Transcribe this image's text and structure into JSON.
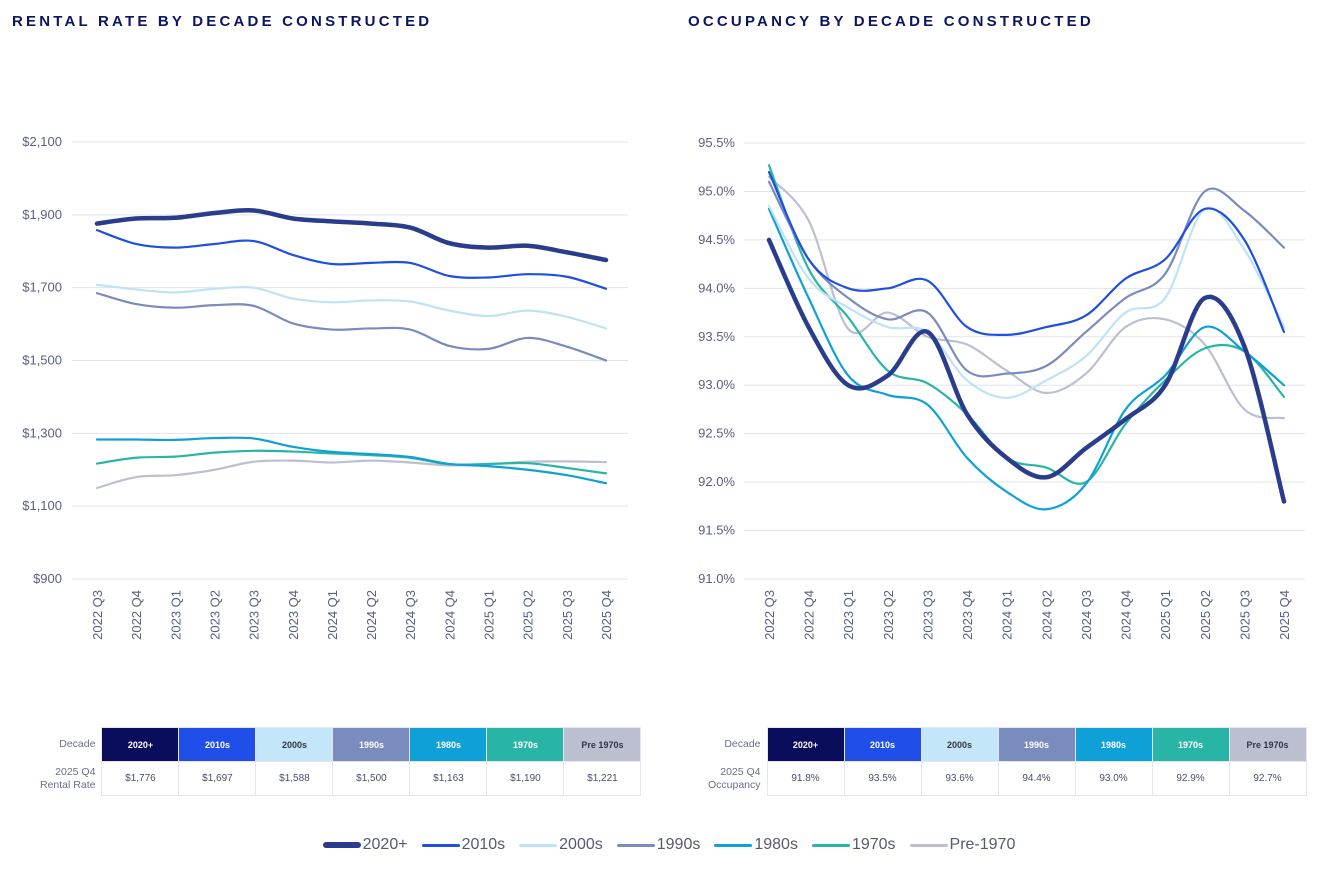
{
  "chart_data": [
    {
      "type": "line",
      "title": "RENTAL RATE BY DECADE CONSTRUCTED",
      "categories": [
        "2022 Q3",
        "2022 Q4",
        "2023 Q1",
        "2023 Q2",
        "2023 Q3",
        "2023 Q4",
        "2024 Q1",
        "2024 Q2",
        "2024 Q3",
        "2024 Q4",
        "2025 Q1",
        "2025 Q2",
        "2025 Q3",
        "2025 Q4"
      ],
      "ylim": [
        900,
        2100
      ],
      "yticks": [
        900,
        1100,
        1300,
        1500,
        1700,
        1900,
        2100
      ],
      "ytick_labels": [
        "$900",
        "$1,100",
        "$1,300",
        "$1,500",
        "$1,700",
        "$1,900",
        "$2,100"
      ],
      "grid": true,
      "series": [
        {
          "name": "2020+",
          "values": [
            1876,
            1890,
            1892,
            1905,
            1912,
            1890,
            1882,
            1876,
            1865,
            1822,
            1810,
            1815,
            1797,
            1776
          ]
        },
        {
          "name": "2010s",
          "values": [
            1858,
            1820,
            1810,
            1820,
            1828,
            1790,
            1765,
            1768,
            1768,
            1732,
            1728,
            1737,
            1730,
            1697
          ]
        },
        {
          "name": "2000s",
          "values": [
            1708,
            1695,
            1687,
            1697,
            1700,
            1670,
            1660,
            1665,
            1662,
            1637,
            1622,
            1637,
            1620,
            1588
          ]
        },
        {
          "name": "1990s",
          "values": [
            1685,
            1655,
            1645,
            1652,
            1650,
            1602,
            1585,
            1588,
            1585,
            1540,
            1532,
            1562,
            1538,
            1500
          ]
        },
        {
          "name": "1980s",
          "values": [
            1283,
            1283,
            1282,
            1287,
            1286,
            1263,
            1249,
            1243,
            1235,
            1216,
            1210,
            1200,
            1185,
            1163
          ]
        },
        {
          "name": "1970s",
          "values": [
            1217,
            1233,
            1236,
            1247,
            1252,
            1250,
            1245,
            1240,
            1233,
            1215,
            1216,
            1218,
            1205,
            1190
          ]
        },
        {
          "name": "Pre-1970",
          "values": [
            1150,
            1180,
            1185,
            1200,
            1222,
            1225,
            1220,
            1225,
            1220,
            1212,
            1215,
            1222,
            1223,
            1221
          ]
        }
      ]
    },
    {
      "type": "line",
      "title": "OCCUPANCY BY DECADE CONSTRUCTED",
      "categories": [
        "2022 Q3",
        "2022 Q4",
        "2023 Q1",
        "2023 Q2",
        "2023 Q3",
        "2023 Q4",
        "2024 Q1",
        "2024 Q2",
        "2024 Q3",
        "2024 Q4",
        "2025 Q1",
        "2025 Q2",
        "2025 Q3",
        "2025 Q4"
      ],
      "ylim": [
        91.0,
        95.5
      ],
      "yticks": [
        91.0,
        91.5,
        92.0,
        92.5,
        93.0,
        93.5,
        94.0,
        94.5,
        95.0,
        95.5
      ],
      "ytick_labels": [
        "91.0%",
        "91.5%",
        "92.0%",
        "92.5%",
        "93.0%",
        "93.5%",
        "94.0%",
        "94.5%",
        "95.0%",
        "95.5%"
      ],
      "grid": true,
      "series": [
        {
          "name": "2020+",
          "values": [
            94.5,
            93.6,
            93.0,
            93.1,
            93.55,
            92.7,
            92.25,
            92.05,
            92.35,
            92.65,
            93.0,
            93.9,
            93.4,
            91.8
          ]
        },
        {
          "name": "2010s",
          "values": [
            95.2,
            94.3,
            94.0,
            94.0,
            94.08,
            93.6,
            93.52,
            93.6,
            93.72,
            94.1,
            94.3,
            94.82,
            94.5,
            93.55
          ]
        },
        {
          "name": "2000s",
          "values": [
            94.85,
            94.1,
            93.8,
            93.6,
            93.55,
            93.05,
            92.87,
            93.05,
            93.3,
            93.75,
            93.9,
            94.82,
            94.4,
            93.6
          ]
        },
        {
          "name": "1990s",
          "values": [
            95.1,
            94.3,
            93.9,
            93.68,
            93.75,
            93.15,
            93.12,
            93.2,
            93.55,
            93.9,
            94.15,
            95.0,
            94.8,
            94.42
          ]
        },
        {
          "name": "1980s",
          "values": [
            94.82,
            93.9,
            93.1,
            92.9,
            92.8,
            92.25,
            91.9,
            91.72,
            91.98,
            92.75,
            93.1,
            93.6,
            93.35,
            93.0
          ]
        },
        {
          "name": "1970s",
          "values": [
            95.27,
            94.2,
            93.7,
            93.15,
            93.02,
            92.7,
            92.25,
            92.15,
            92.0,
            92.6,
            93.05,
            93.38,
            93.35,
            92.88
          ]
        },
        {
          "name": "Pre-1970",
          "values": [
            95.15,
            94.7,
            93.58,
            93.75,
            93.5,
            93.42,
            93.15,
            92.92,
            93.12,
            93.6,
            93.68,
            93.42,
            92.75,
            92.66
          ]
        }
      ]
    }
  ],
  "colors": {
    "line": [
      "#2a3d8c",
      "#1f4fe0",
      "#bde3f5",
      "#7a8bbd",
      "#0fa0d8",
      "#28b5a5",
      "#bcbfd0"
    ],
    "header": [
      "#0a0d5c",
      "#1f4fe8",
      "#c4e6f9",
      "#7a8bbd",
      "#0fa0d8",
      "#28b5a5",
      "#bcbfd0"
    ],
    "header_text": [
      "#ffffff",
      "#ffffff",
      "#333344",
      "#ffffff",
      "#ffffff",
      "#ffffff",
      "#333344"
    ],
    "title": "#0b1560"
  },
  "tables": [
    {
      "header_label": "Decade",
      "row_label": "2025 Q4\nRental Rate",
      "headers": [
        "2020+",
        "2010s",
        "2000s",
        "1990s",
        "1980s",
        "1970s",
        "Pre 1970s"
      ],
      "values": [
        "$1,776",
        "$1,697",
        "$1,588",
        "$1,500",
        "$1,163",
        "$1,190",
        "$1,221"
      ]
    },
    {
      "header_label": "Decade",
      "row_label": "2025 Q4\nOccupancy",
      "headers": [
        "2020+",
        "2010s",
        "2000s",
        "1990s",
        "1980s",
        "1970s",
        "Pre 1970s"
      ],
      "values": [
        "91.8%",
        "93.5%",
        "93.6%",
        "94.4%",
        "93.0%",
        "92.9%",
        "92.7%"
      ]
    }
  ],
  "legend": [
    "2020+",
    "2010s",
    "2000s",
    "1990s",
    "1980s",
    "1970s",
    "Pre-1970"
  ]
}
